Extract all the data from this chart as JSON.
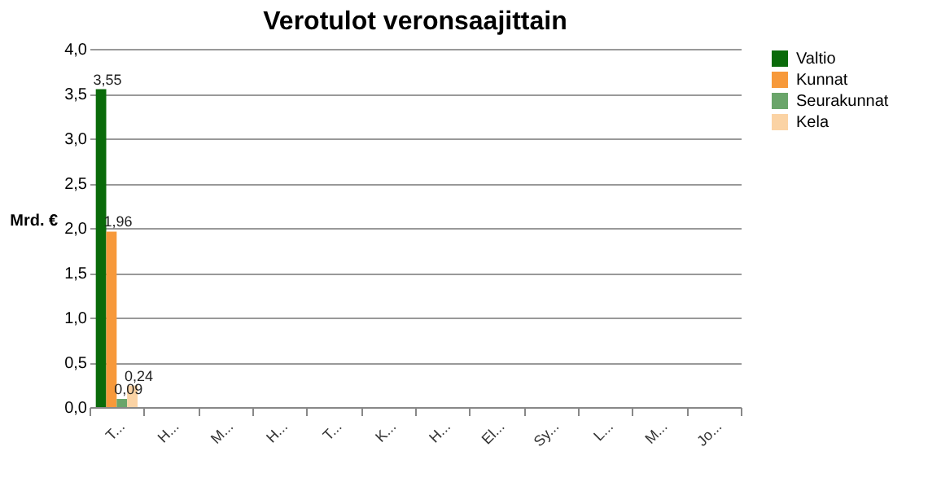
{
  "chart_data": {
    "type": "bar",
    "title": "Verotulot veronsaajittain",
    "ylabel": "Mrd. €",
    "categories": [
      "T...",
      "H...",
      "M...",
      "H...",
      "T...",
      "K...",
      "H...",
      "El...",
      "Sy...",
      "L...",
      "M...",
      "Jo..."
    ],
    "series": [
      {
        "name": "Valtio",
        "color": "#0a6b0a",
        "values": [
          3.55,
          null,
          null,
          null,
          null,
          null,
          null,
          null,
          null,
          null,
          null,
          null
        ],
        "value_labels": [
          "3,55",
          null,
          null,
          null,
          null,
          null,
          null,
          null,
          null,
          null,
          null,
          null
        ]
      },
      {
        "name": "Kunnat",
        "color": "#f7993a",
        "values": [
          1.96,
          null,
          null,
          null,
          null,
          null,
          null,
          null,
          null,
          null,
          null,
          null
        ],
        "value_labels": [
          "1,96",
          null,
          null,
          null,
          null,
          null,
          null,
          null,
          null,
          null,
          null,
          null
        ]
      },
      {
        "name": "Seurakunnat",
        "color": "#6aa56a",
        "values": [
          0.09,
          null,
          null,
          null,
          null,
          null,
          null,
          null,
          null,
          null,
          null,
          null
        ],
        "value_labels": [
          "0,09",
          null,
          null,
          null,
          null,
          null,
          null,
          null,
          null,
          null,
          null,
          null
        ]
      },
      {
        "name": "Kela",
        "color": "#fbd3a4",
        "values": [
          0.24,
          null,
          null,
          null,
          null,
          null,
          null,
          null,
          null,
          null,
          null,
          null
        ],
        "value_labels": [
          "0,24",
          null,
          null,
          null,
          null,
          null,
          null,
          null,
          null,
          null,
          null,
          null
        ]
      }
    ],
    "ylim": [
      0,
      4
    ],
    "yticks": [
      {
        "value": 0,
        "label": "0,0"
      },
      {
        "value": 0.5,
        "label": "0,5"
      },
      {
        "value": 1,
        "label": "1,0"
      },
      {
        "value": 1.5,
        "label": "1,5"
      },
      {
        "value": 2,
        "label": "2,0"
      },
      {
        "value": 2.5,
        "label": "2,5"
      },
      {
        "value": 3,
        "label": "3,0"
      },
      {
        "value": 3.5,
        "label": "3,5"
      },
      {
        "value": 4,
        "label": "4,0"
      }
    ],
    "grid": "y",
    "legend": "right"
  }
}
